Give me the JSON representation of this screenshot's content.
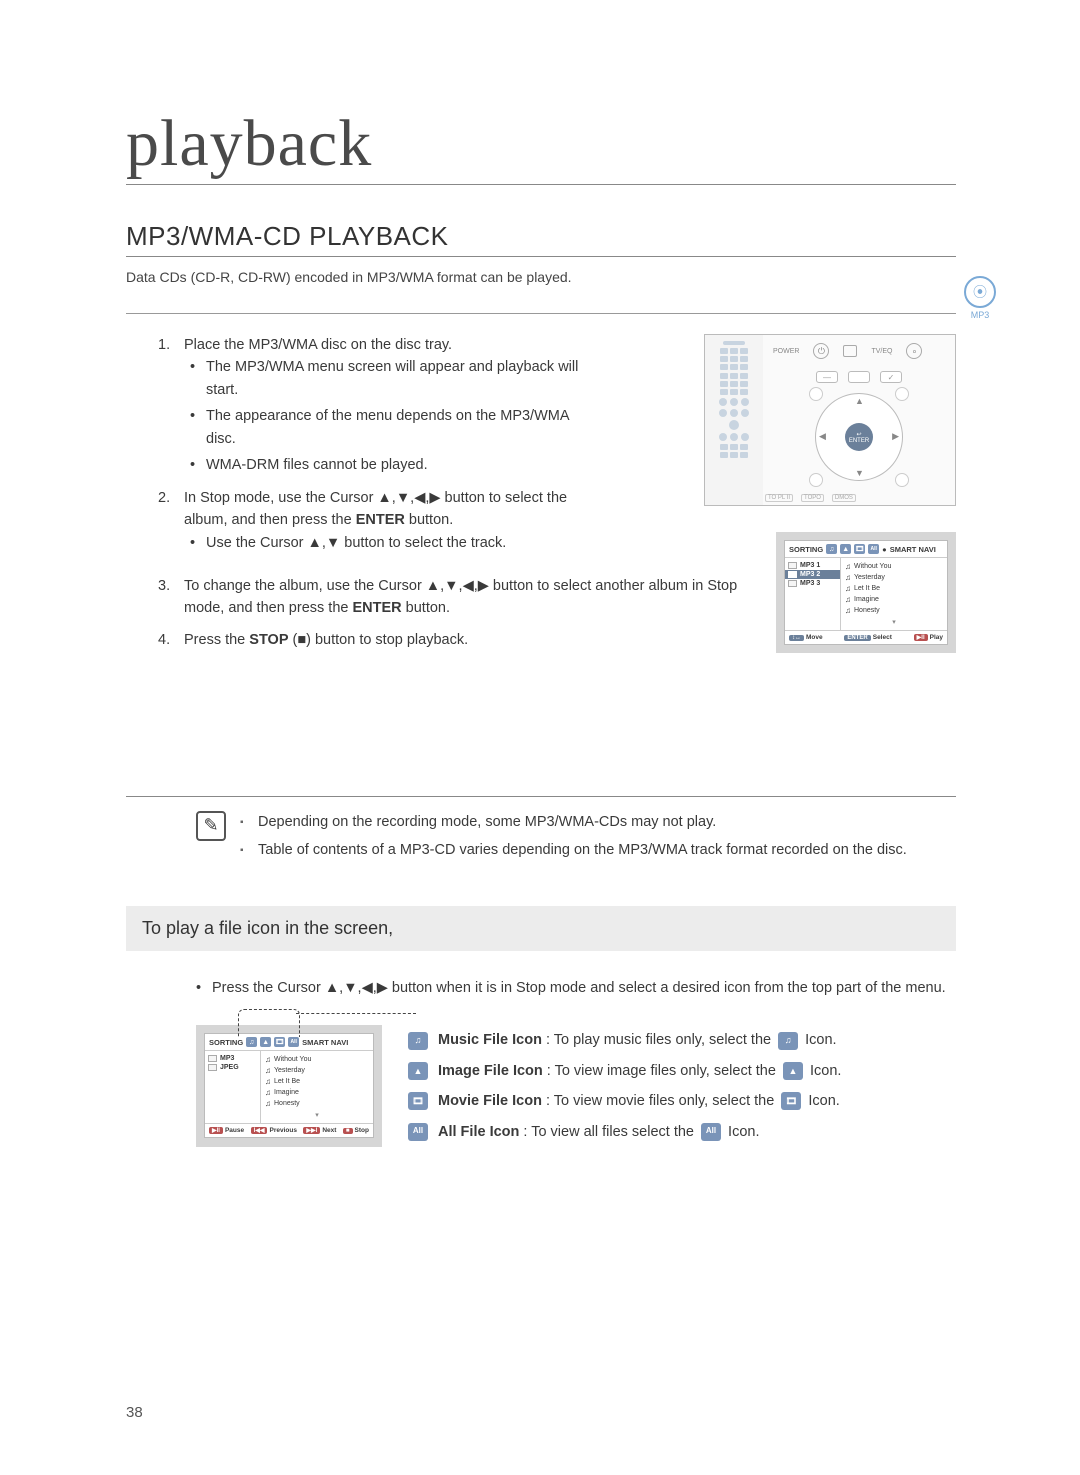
{
  "page_number": "38",
  "title": "playback",
  "section_heading": "MP3/WMA-CD PLAYBACK",
  "intro": "Data CDs (CD-R, CD-RW) encoded in MP3/WMA format can be played.",
  "side_badge": {
    "glyph": "⦿",
    "label": "MP3"
  },
  "steps": {
    "s1": {
      "num": "1.",
      "text": "Place the MP3/WMA disc on the disc tray.",
      "b1": "The MP3/WMA menu screen will appear and playback will start.",
      "b2": "The appearance of the menu depends on the MP3/WMA disc.",
      "b3": "WMA-DRM files cannot be played."
    },
    "s2": {
      "num": "2.",
      "text_a": "In Stop mode, use the Cursor ▲,▼,◀,▶ button to select the album, and then press the ",
      "enter": "ENTER",
      "text_b": " button.",
      "b1": "Use the Cursor ▲,▼ button to select the track."
    },
    "s3": {
      "num": "3.",
      "text_a": "To change the album, use the Cursor ▲,▼,◀,▶ button to select another album in Stop mode, and then press the ",
      "enter": "ENTER",
      "text_b": " button."
    },
    "s4": {
      "num": "4.",
      "text_a": "Press the ",
      "stop": "STOP",
      "text_b": " (■) button to stop playback."
    }
  },
  "remote": {
    "power": "POWER",
    "tveq": "TV/EQ",
    "enter": "ENTER",
    "menu": "↩",
    "mode": "MODE",
    "bmkr": "BMKR",
    "arrows": {
      "u": "▲",
      "d": "▼",
      "l": "◀",
      "r": "▶"
    }
  },
  "nav": {
    "sort": "SORTING",
    "smart": "SMART NAVI",
    "dot": "●",
    "folders": [
      "MP3 1",
      "MP3 2",
      "MP3 3"
    ],
    "folders2": [
      "MP3",
      "JPEG"
    ],
    "tracks": [
      "Without You",
      "Yesterday",
      "Let It Be",
      "Imagine",
      "Honesty"
    ],
    "down_arrow": "▾",
    "bottom": {
      "move": "Move",
      "select": "Select",
      "play": "Play",
      "pause": "Pause",
      "prev": "Previous",
      "next": "Next",
      "stop": "Stop"
    },
    "pills": {
      "arrows": "↕↔",
      "enter": "ENTER",
      "play": "▶ll",
      "pause": "▶ll",
      "prev": "l◀◀",
      "next": "▶▶l",
      "stop": "■"
    }
  },
  "icon_colors": {
    "music": "#7a94b8",
    "image": "#7a94b8",
    "movie": "#7a94b8",
    "all": "#7a94b8"
  },
  "icon_glyphs": {
    "music": "♫",
    "image": "▲",
    "movie": "🎞",
    "all": "All"
  },
  "notes": {
    "n1": "Depending on the recording mode, some MP3/WMA-CDs may not play.",
    "n2": "Table of contents of a MP3-CD varies depending on the MP3/WMA track format recorded on the disc."
  },
  "sub_heading": "To play a file icon in the screen,",
  "sub_body": "Press the Cursor ▲,▼,◀,▶ button when it is in Stop mode and select a desired icon from the top part of the menu.",
  "legend": {
    "music": {
      "name": "Music File Icon",
      "desc": " : To play music files only, select the ",
      "tail": " Icon."
    },
    "image": {
      "name": "Image File Icon",
      "desc": " : To view image files only, select the ",
      "tail": " Icon."
    },
    "movie": {
      "name": "Movie File Icon",
      "desc": " : To view movie files only, select the ",
      "tail": " Icon."
    },
    "all": {
      "name": "All File Icon",
      "desc": " : To view all files select the ",
      "tail": " Icon."
    }
  }
}
